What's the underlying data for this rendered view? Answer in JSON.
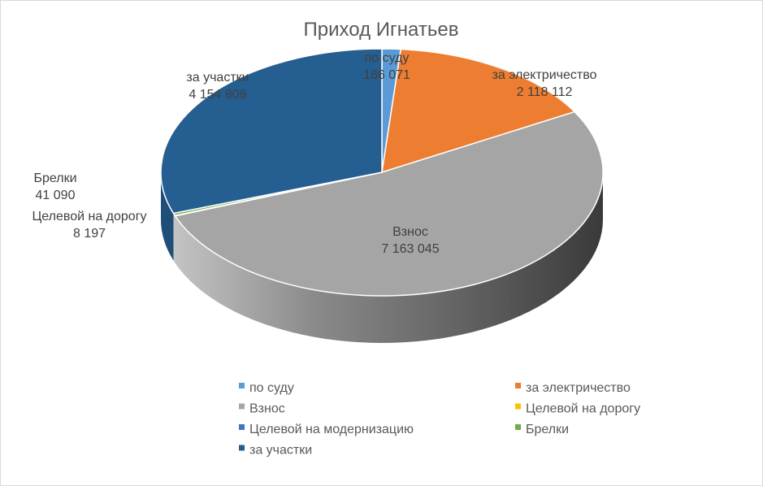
{
  "chart_data": {
    "type": "pie",
    "title": "Приход Игнатьев",
    "three_d": true,
    "legend_position": "bottom",
    "slices": [
      {
        "label": "по суду",
        "value": 186071,
        "value_label": "186 071",
        "color": "#5b9bd5"
      },
      {
        "label": "за электричество",
        "value": 2118112,
        "value_label": "2 118 112",
        "color": "#ed7d31"
      },
      {
        "label": "Взнос",
        "value": 7163045,
        "value_label": "7 163 045",
        "color": "#a5a5a5"
      },
      {
        "label": "Целевой на дорогу",
        "value": 8197,
        "value_label": "8 197",
        "color": "#ffc000"
      },
      {
        "label": "Целевой на модернизацию",
        "value": 0,
        "value_label": "",
        "color": "#4472c4"
      },
      {
        "label": "Брелки",
        "value": 41090,
        "value_label": "41 090",
        "color": "#70ad47"
      },
      {
        "label": "за участки",
        "value": 4154808,
        "value_label": "4 154 808",
        "color": "#255e91"
      }
    ]
  }
}
